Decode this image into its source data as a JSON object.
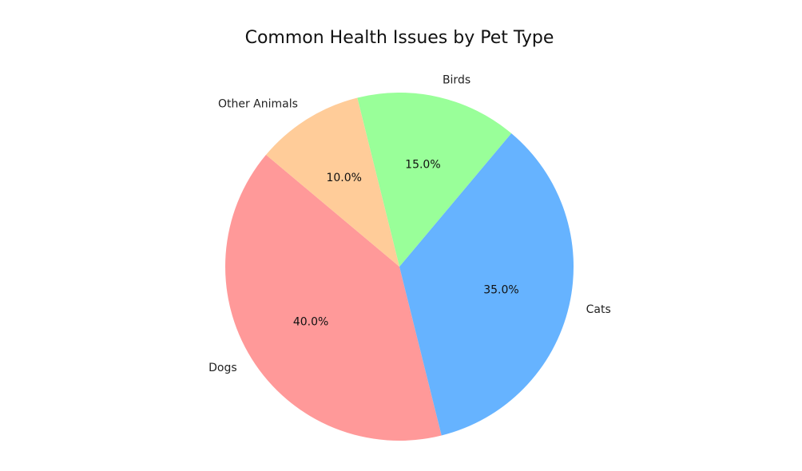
{
  "chart_data": {
    "type": "pie",
    "title": "Common Health Issues by Pet Type",
    "categories": [
      "Dogs",
      "Cats",
      "Birds",
      "Other Animals"
    ],
    "values": [
      40.0,
      35.0,
      15.0,
      10.0
    ],
    "percent_labels": [
      "40.0%",
      "35.0%",
      "15.0%",
      "10.0%"
    ],
    "colors": [
      "#ff9999",
      "#66b3ff",
      "#99ff99",
      "#ffcc99"
    ],
    "start_angle_deg": 140,
    "direction": "counterclockwise",
    "legend": "none"
  }
}
